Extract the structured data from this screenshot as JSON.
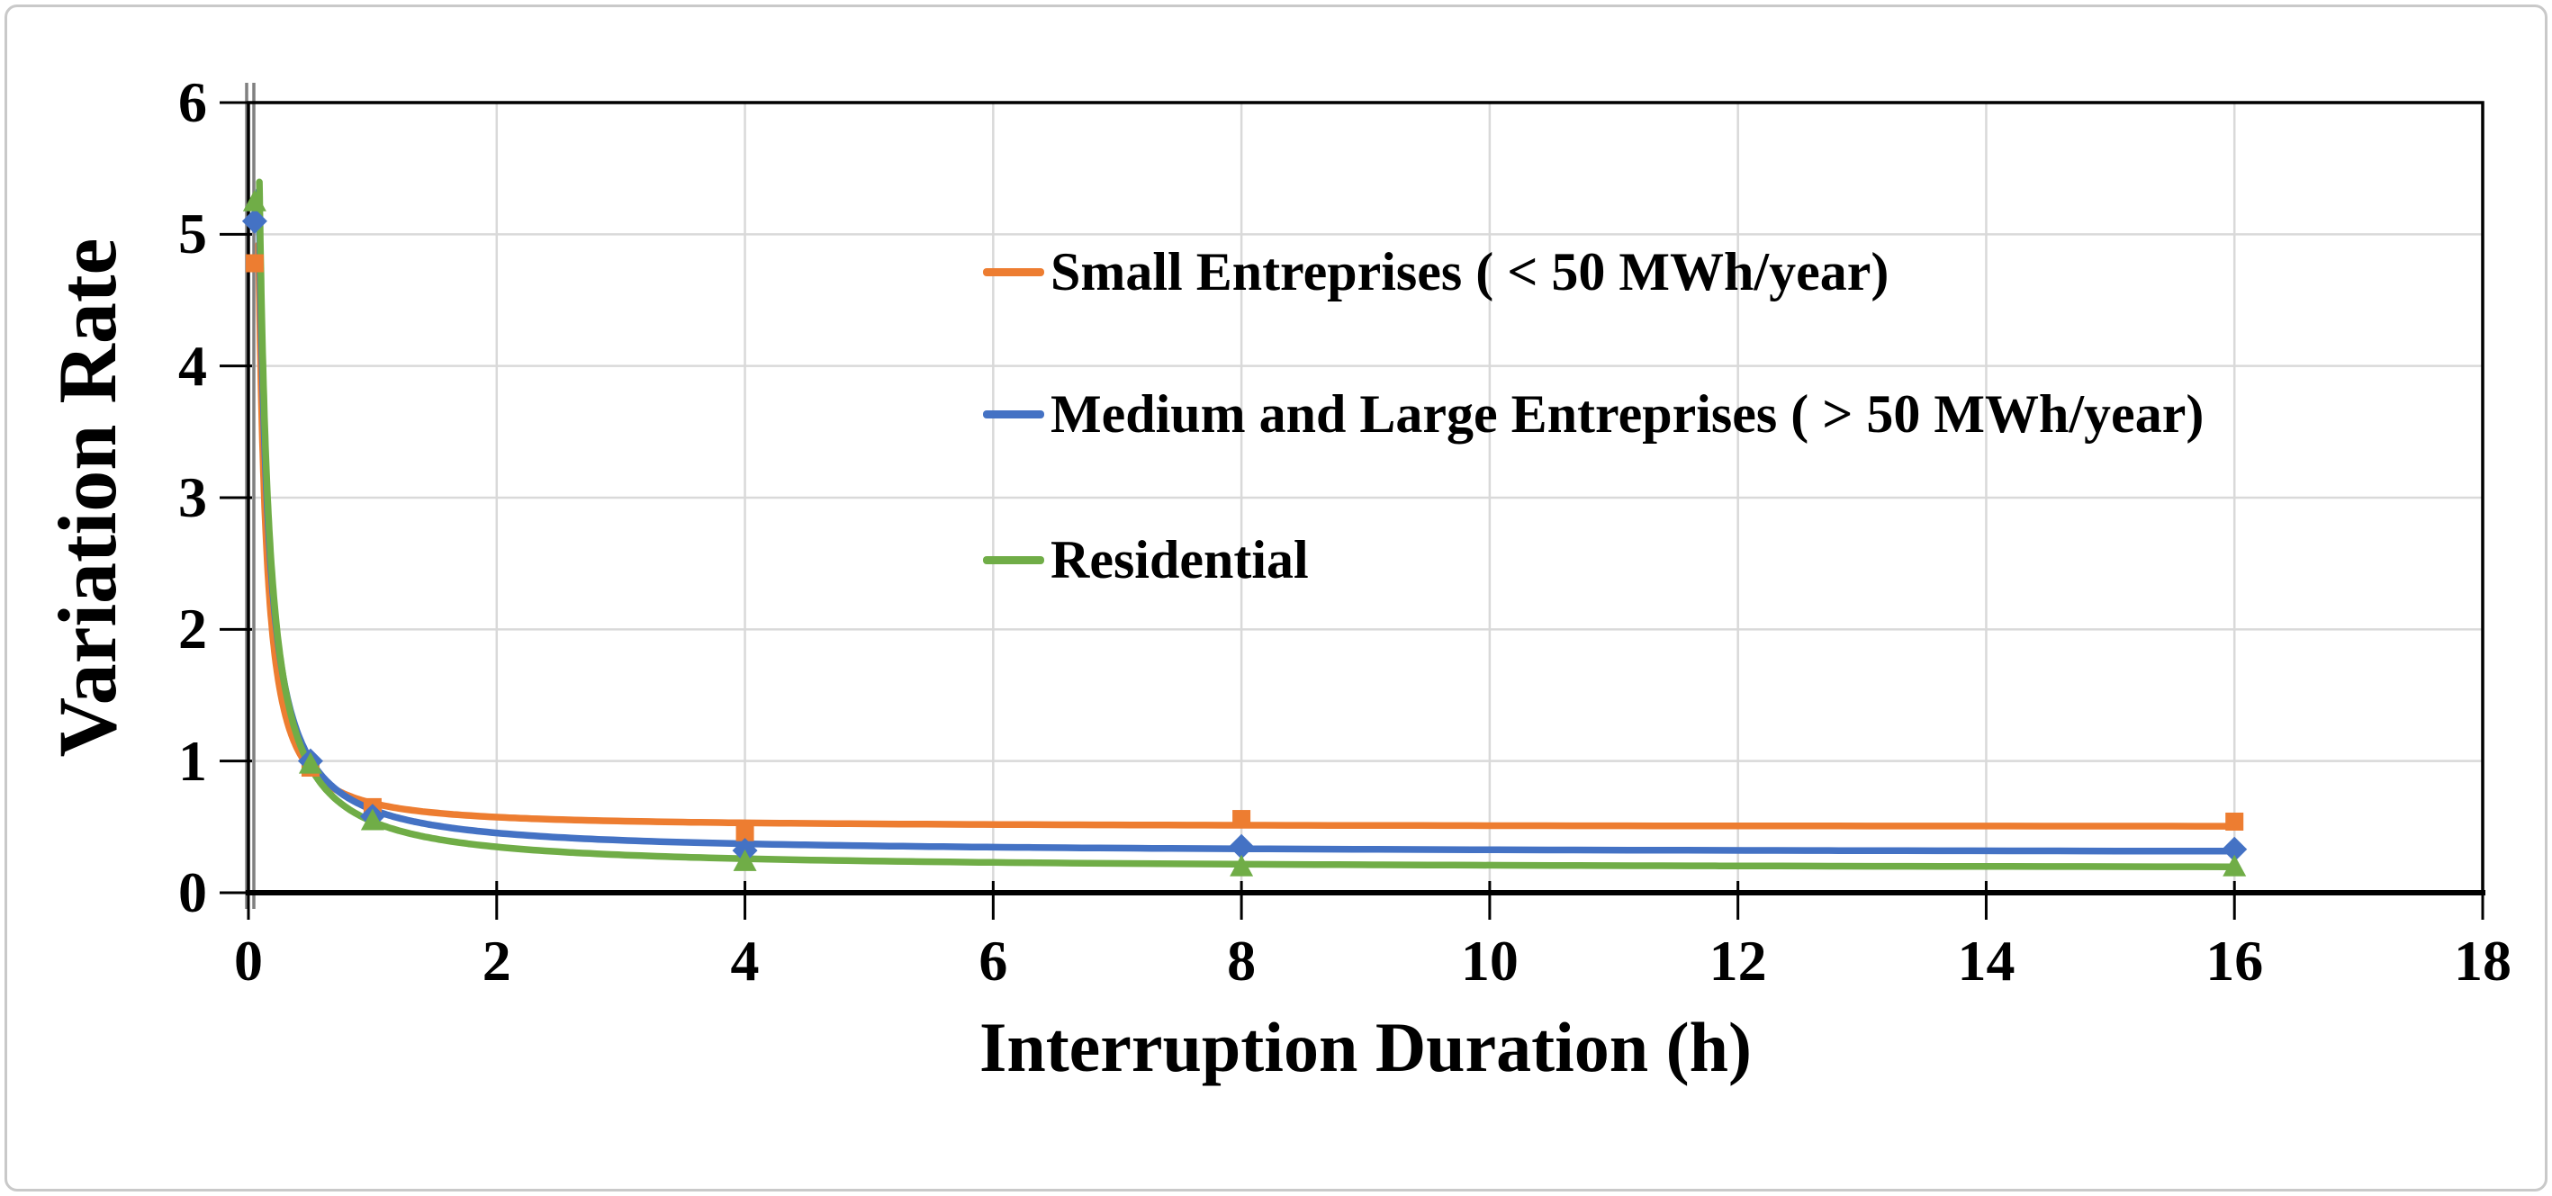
{
  "chart_data": {
    "type": "line",
    "title": "",
    "xlabel": "Interruption Duration (h)",
    "ylabel": "Variation Rate",
    "xlim": [
      0,
      18
    ],
    "ylim": [
      0,
      6
    ],
    "x_ticks": [
      0,
      2,
      4,
      6,
      8,
      10,
      12,
      14,
      16,
      18
    ],
    "y_ticks": [
      0,
      1,
      2,
      3,
      4,
      5,
      6
    ],
    "x_tick_labels": [
      "0",
      "2",
      "4",
      "6",
      "8",
      "10",
      "12",
      "14",
      "16",
      "18"
    ],
    "y_tick_labels": [
      "0",
      "1",
      "2",
      "3",
      "4",
      "5",
      "6"
    ],
    "grid": true,
    "legend_position": "inside-upper-middle",
    "series": [
      {
        "name": "Small Entreprises ( < 50 MWh/year)",
        "color": "#ED7D31",
        "marker": "square",
        "points": [
          [
            0.05,
            4.78
          ],
          [
            0.5,
            0.95
          ],
          [
            1,
            0.65
          ],
          [
            4,
            0.46
          ],
          [
            8,
            0.56
          ],
          [
            16,
            0.54
          ]
        ],
        "fit": {
          "c": 0.5,
          "k": 0.18,
          "p": 1.28,
          "x_start": 0.082,
          "x_end": 16
        }
      },
      {
        "name": "Medium and Large Entreprises ( > 50 MWh/year)",
        "color": "#4472C4",
        "marker": "diamond",
        "points": [
          [
            0.05,
            5.1
          ],
          [
            0.5,
            1.0
          ],
          [
            1,
            0.58
          ],
          [
            4,
            0.32
          ],
          [
            8,
            0.35
          ],
          [
            16,
            0.33
          ]
        ],
        "fit": {
          "c": 0.3,
          "k": 0.33,
          "p": 1.1,
          "x_start": 0.084,
          "x_end": 16
        }
      },
      {
        "name": "Residential",
        "color": "#70AD47",
        "marker": "triangle",
        "points": [
          [
            0.05,
            5.25
          ],
          [
            0.5,
            0.98
          ],
          [
            1,
            0.55
          ],
          [
            4,
            0.24
          ],
          [
            8,
            0.2
          ],
          [
            16,
            0.2
          ]
        ],
        "fit": {
          "c": 0.18,
          "k": 0.36,
          "p": 1.1,
          "x_start": 0.088,
          "x_end": 16
        }
      }
    ],
    "colors": {
      "grid": "#D9D9D9",
      "frame": "#000000",
      "axis_line": "#808080",
      "text": "#000000",
      "background": "#FFFFFF"
    }
  }
}
